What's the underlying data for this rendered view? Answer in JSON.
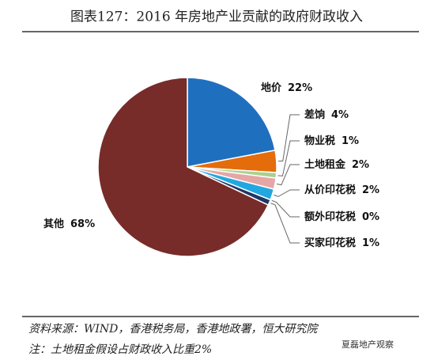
{
  "chart_data": {
    "type": "pie",
    "title": "图表127：2016 年房地产业贡献的政府财政收入",
    "categories": [
      "地价",
      "差饷",
      "物业税",
      "土地租金",
      "从价印花税",
      "额外印花税",
      "买家印花税",
      "其他"
    ],
    "values": [
      22,
      4,
      1,
      2,
      2,
      0,
      1,
      68
    ],
    "value_labels": [
      "22%",
      "4%",
      "1%",
      "2%",
      "2%",
      "0%",
      "1%",
      "68%"
    ],
    "colors": [
      "#1f6fbf",
      "#e46c0a",
      "#a9d18e",
      "#e6a6a6",
      "#22a7e0",
      "#c9c9c9",
      "#203864",
      "#772c2a"
    ],
    "source": "资料来源：WIND，香港税务局，香港地政署，恒大研究院",
    "note": "注：土地租金假设占财政收入比重2%",
    "watermark": "夏磊地产观察"
  }
}
